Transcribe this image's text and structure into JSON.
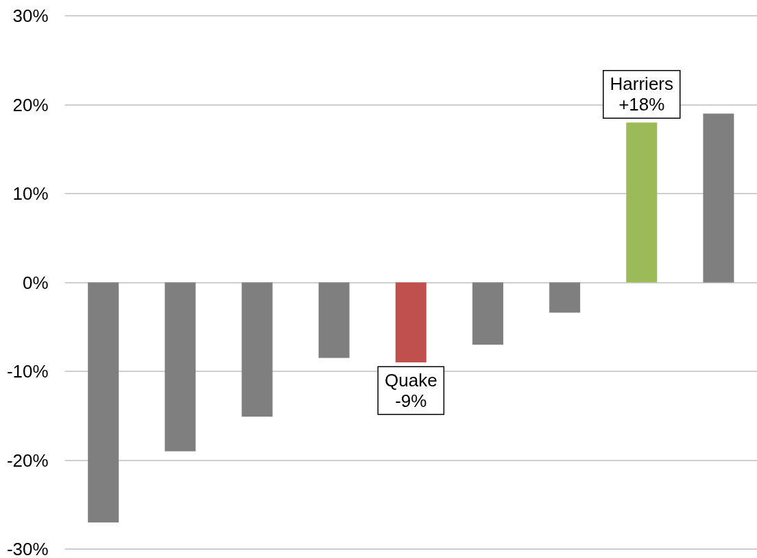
{
  "chart_data": {
    "type": "bar",
    "categories": [
      null,
      null,
      null,
      null,
      null,
      null,
      null,
      null,
      null
    ],
    "values": [
      -27,
      -19,
      -15.1,
      -8.5,
      -9,
      -7,
      -3.4,
      18,
      19
    ],
    "colors": [
      "#7f7f7f",
      "#7f7f7f",
      "#7f7f7f",
      "#7f7f7f",
      "#c0504d",
      "#7f7f7f",
      "#7f7f7f",
      "#9bbb59",
      "#7f7f7f"
    ],
    "value_labels": [
      null,
      null,
      null,
      null,
      "Quake\n-9%",
      null,
      null,
      "Harriers\n+18%",
      null
    ],
    "ylim": [
      -30,
      30
    ],
    "yticks": [
      {
        "value": -30,
        "label": "-30%"
      },
      {
        "value": -20,
        "label": "-20%"
      },
      {
        "value": -10,
        "label": "-10%"
      },
      {
        "value": 0,
        "label": "0%"
      },
      {
        "value": 10,
        "label": "10%"
      },
      {
        "value": 20,
        "label": "20%"
      },
      {
        "value": 30,
        "label": "30%"
      }
    ],
    "grid": "y",
    "tick_labels": "y"
  }
}
